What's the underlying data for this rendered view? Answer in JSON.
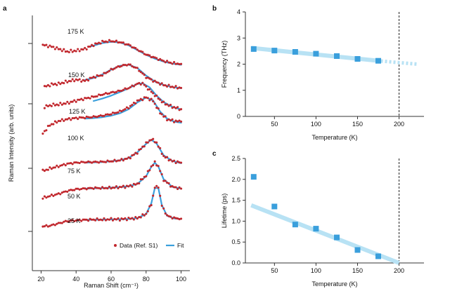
{
  "colors": {
    "data": "#c1272d",
    "fit": "#3a9fdc",
    "trend": "#b8e2f4",
    "marker": "#3a9fdc",
    "axis": "#333333"
  },
  "chart_data": [
    {
      "panel": "a",
      "type": "line",
      "xlabel": "Raman Shift (cm⁻¹)",
      "ylabel": "Raman Intensity (arb. units)",
      "xlim": [
        15,
        105
      ],
      "xticks": [
        20,
        40,
        60,
        80,
        100
      ],
      "y_tick_labels": "none",
      "legend": [
        "Data (Ref. S1)",
        "Fit"
      ],
      "legend_position": "bottom-right",
      "spectra": [
        {
          "label": "175 K",
          "peak_cm": 63,
          "data": [
            [
              21,
              0.85
            ],
            [
              25,
              0.81
            ],
            [
              30,
              0.72
            ],
            [
              35,
              0.63
            ],
            [
              40,
              0.66
            ],
            [
              45,
              0.72
            ],
            [
              50,
              0.86
            ],
            [
              55,
              0.96
            ],
            [
              60,
              0.99
            ],
            [
              65,
              0.95
            ],
            [
              70,
              0.86
            ],
            [
              75,
              0.7
            ],
            [
              80,
              0.53
            ],
            [
              85,
              0.42
            ],
            [
              90,
              0.31
            ],
            [
              95,
              0.24
            ],
            [
              100,
              0.21
            ]
          ],
          "fit": [
            [
              48,
              0.8
            ],
            [
              55,
              0.92
            ],
            [
              60,
              0.96
            ],
            [
              65,
              0.94
            ],
            [
              70,
              0.84
            ],
            [
              75,
              0.68
            ],
            [
              80,
              0.52
            ],
            [
              85,
              0.39
            ],
            [
              90,
              0.29
            ],
            [
              95,
              0.22
            ],
            [
              100,
              0.18
            ]
          ]
        },
        {
          "label": "150 K",
          "peak_cm": 68,
          "data": [
            [
              22,
              0.22
            ],
            [
              26,
              0.3
            ],
            [
              30,
              0.32
            ],
            [
              35,
              0.4
            ],
            [
              40,
              0.46
            ],
            [
              45,
              0.42
            ],
            [
              50,
              0.55
            ],
            [
              55,
              0.62
            ],
            [
              60,
              0.8
            ],
            [
              65,
              0.92
            ],
            [
              70,
              0.98
            ],
            [
              75,
              0.84
            ],
            [
              80,
              0.55
            ],
            [
              85,
              0.4
            ],
            [
              90,
              0.28
            ],
            [
              95,
              0.22
            ],
            [
              100,
              0.18
            ]
          ],
          "fit": [
            [
              45,
              0.45
            ],
            [
              50,
              0.52
            ],
            [
              55,
              0.64
            ],
            [
              60,
              0.8
            ],
            [
              65,
              0.93
            ],
            [
              70,
              0.97
            ],
            [
              75,
              0.86
            ],
            [
              80,
              0.6
            ],
            [
              85,
              0.4
            ],
            [
              90,
              0.28
            ],
            [
              95,
              0.21
            ],
            [
              100,
              0.17
            ]
          ]
        },
        {
          "label": "125 K",
          "peak_cm": 76,
          "data": [
            [
              22,
              0.42
            ],
            [
              26,
              0.48
            ],
            [
              30,
              0.5
            ],
            [
              35,
              0.55
            ],
            [
              40,
              0.63
            ],
            [
              45,
              0.7
            ],
            [
              50,
              0.76
            ],
            [
              55,
              0.84
            ],
            [
              60,
              0.9
            ],
            [
              65,
              0.96
            ],
            [
              70,
              1.06
            ],
            [
              75,
              1.2
            ],
            [
              78,
              1.22
            ],
            [
              80,
              1.1
            ],
            [
              85,
              0.82
            ],
            [
              90,
              0.55
            ],
            [
              95,
              0.42
            ],
            [
              100,
              0.34
            ]
          ],
          "fit": [
            [
              50,
              0.62
            ],
            [
              55,
              0.7
            ],
            [
              60,
              0.8
            ],
            [
              65,
              0.92
            ],
            [
              70,
              1.05
            ],
            [
              75,
              1.2
            ],
            [
              78,
              1.22
            ],
            [
              82,
              1.08
            ],
            [
              86,
              0.8
            ],
            [
              90,
              0.58
            ],
            [
              95,
              0.42
            ],
            [
              100,
              0.33
            ]
          ]
        },
        {
          "label": "100 K",
          "peak_cm": 80,
          "data": [
            [
              21,
              0.4
            ],
            [
              25,
              0.68
            ],
            [
              30,
              0.82
            ],
            [
              35,
              0.88
            ],
            [
              40,
              0.92
            ],
            [
              45,
              0.94
            ],
            [
              50,
              0.96
            ],
            [
              55,
              1.0
            ],
            [
              60,
              1.06
            ],
            [
              65,
              1.14
            ],
            [
              70,
              1.28
            ],
            [
              75,
              1.5
            ],
            [
              80,
              1.62
            ],
            [
              84,
              1.5
            ],
            [
              88,
              1.1
            ],
            [
              92,
              0.88
            ],
            [
              96,
              0.82
            ],
            [
              100,
              0.8
            ]
          ],
          "fit": [
            [
              45,
              0.9
            ],
            [
              50,
              0.92
            ],
            [
              55,
              0.95
            ],
            [
              60,
              1.0
            ],
            [
              65,
              1.08
            ],
            [
              70,
              1.22
            ],
            [
              75,
              1.45
            ],
            [
              80,
              1.62
            ],
            [
              84,
              1.52
            ],
            [
              88,
              1.14
            ],
            [
              92,
              0.9
            ],
            [
              96,
              0.8
            ],
            [
              100,
              0.76
            ]
          ]
        },
        {
          "label": "75 K",
          "peak_cm": 83,
          "data": [
            [
              21,
              0.22
            ],
            [
              25,
              0.3
            ],
            [
              30,
              0.38
            ],
            [
              35,
              0.46
            ],
            [
              40,
              0.5
            ],
            [
              45,
              0.52
            ],
            [
              50,
              0.52
            ],
            [
              55,
              0.53
            ],
            [
              60,
              0.55
            ],
            [
              65,
              0.58
            ],
            [
              70,
              0.65
            ],
            [
              75,
              0.85
            ],
            [
              80,
              1.15
            ],
            [
              83,
              1.3
            ],
            [
              86,
              1.18
            ],
            [
              90,
              0.72
            ],
            [
              95,
              0.55
            ],
            [
              100,
              0.5
            ]
          ],
          "fit": [
            [
              45,
              0.5
            ],
            [
              55,
              0.52
            ],
            [
              65,
              0.58
            ],
            [
              70,
              0.66
            ],
            [
              75,
              0.85
            ],
            [
              80,
              1.14
            ],
            [
              83,
              1.28
            ],
            [
              86,
              1.15
            ],
            [
              90,
              0.75
            ],
            [
              95,
              0.56
            ],
            [
              100,
              0.48
            ]
          ]
        },
        {
          "label": "50 K",
          "peak_cm": 85,
          "data": [
            [
              21,
              0.18
            ],
            [
              25,
              0.25
            ],
            [
              30,
              0.32
            ],
            [
              35,
              0.42
            ],
            [
              40,
              0.48
            ],
            [
              45,
              0.5
            ],
            [
              50,
              0.52
            ],
            [
              55,
              0.52
            ],
            [
              60,
              0.53
            ],
            [
              65,
              0.55
            ],
            [
              70,
              0.58
            ],
            [
              75,
              0.66
            ],
            [
              80,
              0.95
            ],
            [
              83,
              1.25
            ],
            [
              85,
              1.38
            ],
            [
              87,
              1.26
            ],
            [
              90,
              0.8
            ],
            [
              95,
              0.56
            ],
            [
              100,
              0.5
            ]
          ],
          "fit": [
            [
              45,
              0.5
            ],
            [
              55,
              0.52
            ],
            [
              65,
              0.55
            ],
            [
              70,
              0.58
            ],
            [
              75,
              0.66
            ],
            [
              80,
              0.92
            ],
            [
              83,
              1.24
            ],
            [
              85,
              1.38
            ],
            [
              87,
              1.25
            ],
            [
              90,
              0.82
            ],
            [
              95,
              0.56
            ],
            [
              100,
              0.5
            ]
          ]
        },
        {
          "label": "25 K",
          "peak_cm": 86,
          "data": [
            [
              21,
              0.1
            ],
            [
              25,
              0.12
            ],
            [
              30,
              0.2
            ],
            [
              35,
              0.28
            ],
            [
              40,
              0.3
            ],
            [
              45,
              0.32
            ],
            [
              50,
              0.33
            ],
            [
              55,
              0.33
            ],
            [
              60,
              0.34
            ],
            [
              65,
              0.34
            ],
            [
              70,
              0.36
            ],
            [
              75,
              0.38
            ],
            [
              80,
              0.52
            ],
            [
              83,
              0.85
            ],
            [
              85,
              1.42
            ],
            [
              87,
              1.45
            ],
            [
              89,
              0.8
            ],
            [
              92,
              0.46
            ],
            [
              96,
              0.38
            ],
            [
              100,
              0.36
            ]
          ],
          "fit": [
            [
              45,
              0.32
            ],
            [
              55,
              0.33
            ],
            [
              65,
              0.34
            ],
            [
              70,
              0.35
            ],
            [
              75,
              0.38
            ],
            [
              80,
              0.52
            ],
            [
              83,
              0.88
            ],
            [
              85,
              1.4
            ],
            [
              87,
              1.4
            ],
            [
              89,
              0.82
            ],
            [
              92,
              0.46
            ],
            [
              96,
              0.37
            ],
            [
              100,
              0.35
            ]
          ]
        }
      ]
    },
    {
      "panel": "b",
      "type": "scatter",
      "xlabel": "Temperature (K)",
      "ylabel": "Frequency (THz)",
      "xlim": [
        15,
        230
      ],
      "ylim": [
        0,
        4
      ],
      "xticks": [
        50,
        100,
        150,
        200
      ],
      "yticks": [
        0,
        1,
        2,
        3,
        4
      ],
      "points": [
        [
          25,
          2.58
        ],
        [
          50,
          2.52
        ],
        [
          75,
          2.47
        ],
        [
          100,
          2.4
        ],
        [
          125,
          2.31
        ],
        [
          150,
          2.2
        ],
        [
          175,
          2.13
        ]
      ],
      "trend_line": [
        [
          22,
          2.62
        ],
        [
          178,
          2.12
        ]
      ],
      "trend_dotted": [
        [
          178,
          2.12
        ],
        [
          222,
          2.0
        ]
      ],
      "vline": 200
    },
    {
      "panel": "c",
      "type": "scatter",
      "xlabel": "Temperature (K)",
      "ylabel": "Lifetime (ps)",
      "xlim": [
        15,
        230
      ],
      "ylim": [
        0,
        2.5
      ],
      "xticks": [
        50,
        100,
        150,
        200
      ],
      "yticks": [
        0.0,
        0.5,
        1.0,
        1.5,
        2.0,
        2.5
      ],
      "points": [
        [
          25,
          2.06
        ],
        [
          50,
          1.35
        ],
        [
          75,
          0.92
        ],
        [
          100,
          0.82
        ],
        [
          125,
          0.61
        ],
        [
          150,
          0.31
        ],
        [
          175,
          0.16
        ]
      ],
      "trend_line": [
        [
          22,
          1.38
        ],
        [
          200,
          0.0
        ]
      ],
      "vline": 200
    }
  ]
}
